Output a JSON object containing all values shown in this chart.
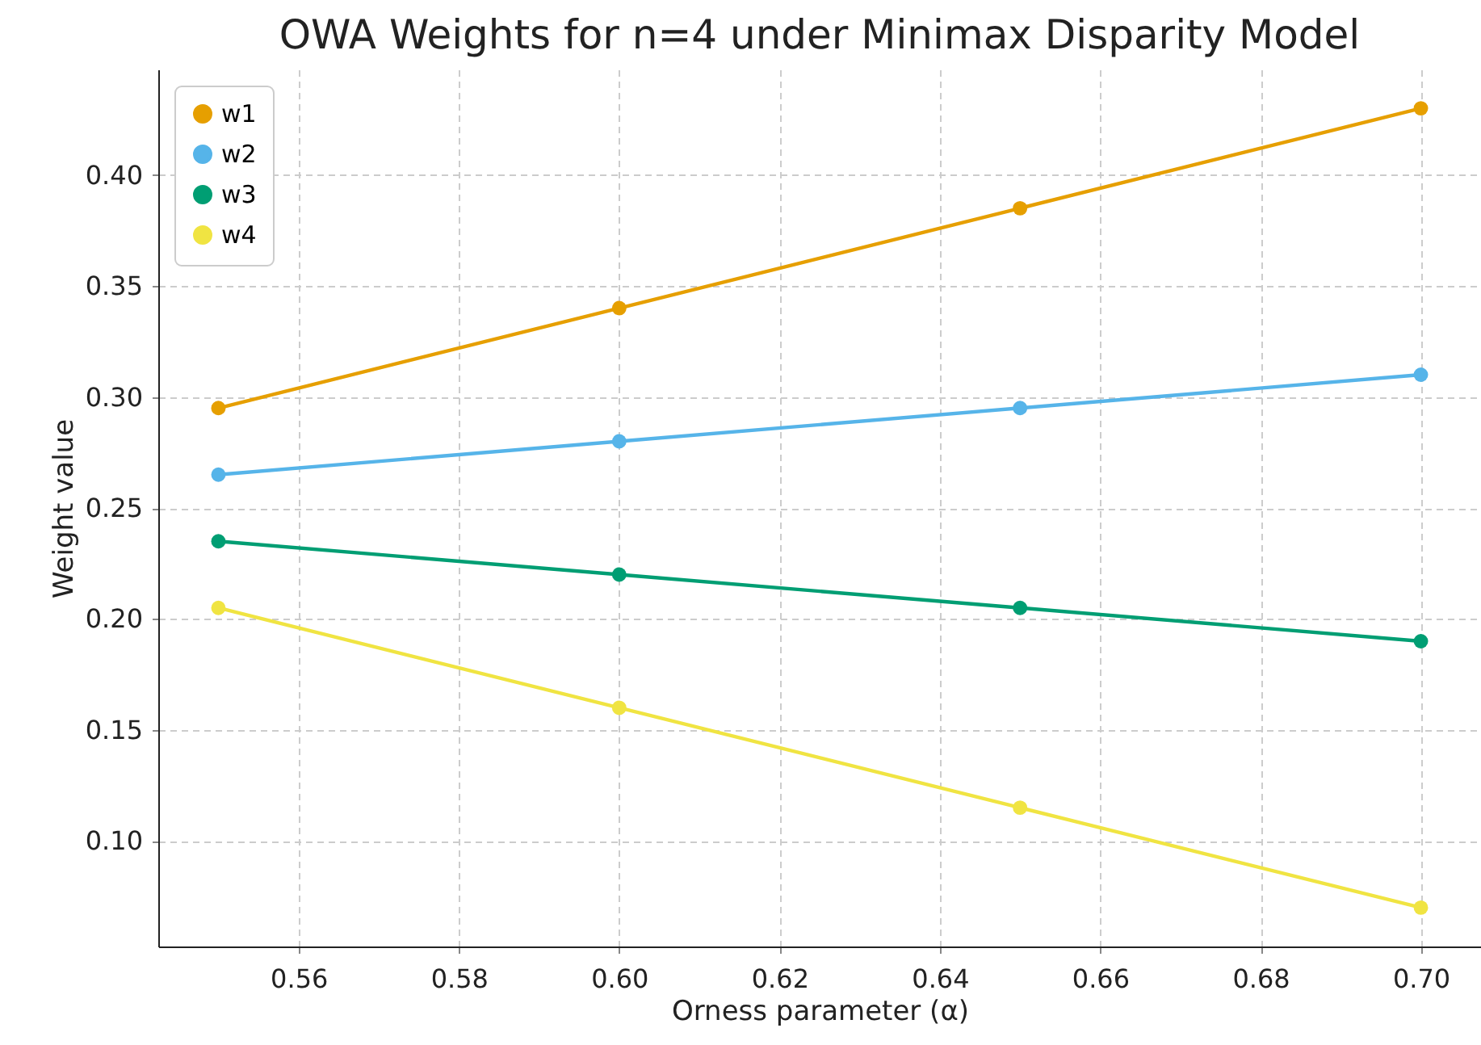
{
  "chart_data": {
    "type": "line",
    "title": "OWA Weights for n=4 under Minimax Disparity Model",
    "xlabel": "Orness parameter (α)",
    "ylabel": "Weight value",
    "x": [
      0.55,
      0.6,
      0.65,
      0.7
    ],
    "series": [
      {
        "name": "w1",
        "color": "#e69f00",
        "values": [
          0.295,
          0.34,
          0.385,
          0.43
        ]
      },
      {
        "name": "w2",
        "color": "#56b4e9",
        "values": [
          0.265,
          0.28,
          0.295,
          0.31
        ]
      },
      {
        "name": "w3",
        "color": "#009e73",
        "values": [
          0.235,
          0.22,
          0.205,
          0.19
        ]
      },
      {
        "name": "w4",
        "color": "#f0e442",
        "values": [
          0.205,
          0.16,
          0.115,
          0.07
        ]
      }
    ],
    "xlim": [
      0.5425,
      0.7075
    ],
    "xticks": [
      0.56,
      0.58,
      {
        "value": 0.6,
        "label": "0.60"
      },
      0.62,
      0.64,
      0.66,
      0.68,
      {
        "value": 0.7,
        "label": "0.70"
      }
    ],
    "ylim": [
      0.0525,
      0.4475
    ],
    "yticks": [
      {
        "value": 0.1,
        "label": "0.10"
      },
      0.15,
      {
        "value": 0.2,
        "label": "0.20"
      },
      0.25,
      {
        "value": 0.3,
        "label": "0.30"
      },
      0.35,
      {
        "value": 0.4,
        "label": "0.40"
      }
    ],
    "grid": true,
    "legend": "top left",
    "marker": "circle",
    "line_style": "solid"
  }
}
